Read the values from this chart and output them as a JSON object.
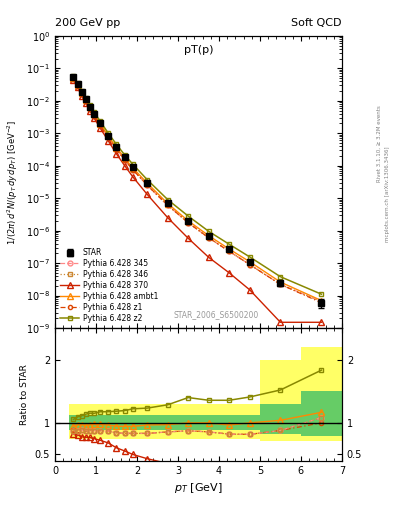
{
  "title_left": "200 GeV pp",
  "title_right": "Soft QCD",
  "plot_title": "pT(p)",
  "ylabel_ratio": "Ratio to STAR",
  "xlabel": "p_T [GeV]",
  "watermark": "STAR_2006_S6500200",
  "right_label": "mcplots.cern.ch [arXiv:1306.3436]",
  "right_label2": "Rivet 3.1.10, ≥ 3.2M events",
  "star_x": [
    0.45,
    0.55,
    0.65,
    0.75,
    0.85,
    0.95,
    1.1,
    1.3,
    1.5,
    1.7,
    1.9,
    2.25,
    2.75,
    3.25,
    3.75,
    4.25,
    4.75,
    5.5,
    6.5
  ],
  "star_y": [
    0.055,
    0.032,
    0.018,
    0.011,
    0.0065,
    0.004,
    0.002,
    0.00085,
    0.00038,
    0.00018,
    9e-05,
    3e-05,
    7e-06,
    2e-06,
    7e-07,
    2.8e-07,
    1.1e-07,
    2.5e-08,
    6e-09
  ],
  "star_yerr": [
    0.003,
    0.002,
    0.001,
    0.0006,
    0.0004,
    0.0002,
    0.0001,
    4e-05,
    2e-05,
    1e-05,
    5e-06,
    1.5e-06,
    4e-07,
    1.2e-07,
    4e-08,
    2e-08,
    1e-08,
    5e-09,
    2e-09
  ],
  "py345_x": [
    0.45,
    0.55,
    0.65,
    0.75,
    0.85,
    0.95,
    1.1,
    1.3,
    1.5,
    1.7,
    1.9,
    2.25,
    2.75,
    3.25,
    3.75,
    4.25,
    4.75,
    5.5,
    6.5
  ],
  "py345_y": [
    0.048,
    0.028,
    0.016,
    0.0095,
    0.0057,
    0.0035,
    0.00175,
    0.00074,
    0.00032,
    0.00015,
    7.5e-05,
    2.5e-05,
    6e-06,
    1.75e-06,
    6e-07,
    2.3e-07,
    9e-08,
    2.2e-08,
    6.5e-09
  ],
  "py345_color": "#ff8888",
  "py345_label": "Pythia 6.428 345",
  "py346_x": [
    0.45,
    0.55,
    0.65,
    0.75,
    0.85,
    0.95,
    1.1,
    1.3,
    1.5,
    1.7,
    1.9,
    2.25,
    2.75,
    3.25,
    3.75,
    4.25,
    4.75,
    5.5,
    6.5
  ],
  "py346_y": [
    0.048,
    0.028,
    0.016,
    0.0095,
    0.0057,
    0.0035,
    0.00175,
    0.00074,
    0.00032,
    0.00015,
    7.5e-05,
    2.5e-05,
    6e-06,
    1.75e-06,
    6e-07,
    2.3e-07,
    9e-08,
    2.2e-08,
    6.5e-09
  ],
  "py346_color": "#cc8833",
  "py346_label": "Pythia 6.428 346",
  "py370_x": [
    0.45,
    0.55,
    0.65,
    0.75,
    0.85,
    0.95,
    1.1,
    1.3,
    1.5,
    1.7,
    1.9,
    2.25,
    2.75,
    3.25,
    3.75,
    4.25,
    4.75,
    5.5,
    6.5
  ],
  "py370_y": [
    0.045,
    0.026,
    0.014,
    0.0085,
    0.005,
    0.003,
    0.00145,
    0.00058,
    0.00023,
    0.0001,
    4.5e-05,
    1.3e-05,
    2.5e-06,
    5.8e-07,
    1.5e-07,
    5e-08,
    1.5e-08,
    1.5e-09,
    1.5e-09
  ],
  "py370_color": "#cc2200",
  "py370_label": "Pythia 6.428 370",
  "pyambt1_x": [
    0.45,
    0.55,
    0.65,
    0.75,
    0.85,
    0.95,
    1.1,
    1.3,
    1.5,
    1.7,
    1.9,
    2.25,
    2.75,
    3.25,
    3.75,
    4.25,
    4.75,
    5.5,
    6.5
  ],
  "pyambt1_y": [
    0.052,
    0.031,
    0.0175,
    0.0105,
    0.0063,
    0.0039,
    0.00195,
    0.00082,
    0.00036,
    0.00017,
    8.5e-05,
    2.9e-05,
    6.8e-06,
    2e-06,
    7e-07,
    2.7e-07,
    1.1e-07,
    2.6e-08,
    7e-09
  ],
  "pyambt1_color": "#ff8800",
  "pyambt1_label": "Pythia 6.428 ambt1",
  "pyz1_x": [
    0.45,
    0.55,
    0.65,
    0.75,
    0.85,
    0.95,
    1.1,
    1.3,
    1.5,
    1.7,
    1.9,
    2.25,
    2.75,
    3.25,
    3.75,
    4.25,
    4.75,
    5.5,
    6.5
  ],
  "pyz1_y": [
    0.049,
    0.028,
    0.016,
    0.0095,
    0.0057,
    0.0035,
    0.00175,
    0.00074,
    0.00032,
    0.00015,
    7.5e-05,
    2.5e-05,
    6e-06,
    1.75e-06,
    6e-07,
    2.3e-07,
    9e-08,
    2.2e-08,
    6e-09
  ],
  "pyz1_color": "#dd4400",
  "pyz1_label": "Pythia 6.428 z1",
  "pyz2_x": [
    0.45,
    0.55,
    0.65,
    0.75,
    0.85,
    0.95,
    1.1,
    1.3,
    1.5,
    1.7,
    1.9,
    2.25,
    2.75,
    3.25,
    3.75,
    4.25,
    4.75,
    5.5,
    6.5
  ],
  "pyz2_y": [
    0.058,
    0.035,
    0.02,
    0.0125,
    0.0075,
    0.0046,
    0.00235,
    0.001,
    0.00045,
    0.000215,
    0.00011,
    3.7e-05,
    9e-06,
    2.8e-06,
    9.5e-07,
    3.8e-07,
    1.55e-07,
    3.8e-08,
    1.1e-08
  ],
  "pyz2_color": "#888800",
  "pyz2_label": "Pythia 6.428 z2",
  "xlim": [
    0,
    7
  ],
  "ylim_main": [
    1e-09,
    1.0
  ],
  "ylim_ratio": [
    0.4,
    2.5
  ]
}
